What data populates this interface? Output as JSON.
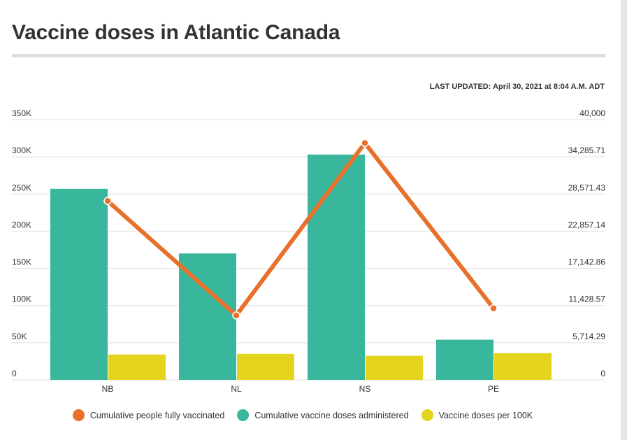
{
  "header": {
    "title": "Vaccine doses in Atlantic Canada",
    "last_updated": "LAST UPDATED: April 30, 2021 at 8:04 A.M. ADT"
  },
  "colors": {
    "fully_vaccinated": "#e8702a",
    "doses_administered": "#38b79c",
    "doses_per_100k": "#e5d41e",
    "gridline": "#dddddd",
    "text": "#333333"
  },
  "chart_data": {
    "type": "bar",
    "categories": [
      "NB",
      "NL",
      "NS",
      "PE"
    ],
    "left_axis": {
      "ylim": [
        0,
        350000
      ],
      "ticks": [
        "350K",
        "300K",
        "250K",
        "200K",
        "150K",
        "100K",
        "50K",
        "0"
      ],
      "tick_values": [
        350000,
        300000,
        250000,
        200000,
        150000,
        100000,
        50000,
        0
      ]
    },
    "right_axis": {
      "ylim": [
        0,
        40000
      ],
      "ticks": [
        "40,000",
        "34,285.71",
        "28,571.43",
        "22,857.14",
        "17,142.86",
        "11,428.57",
        "5,714.29",
        "0"
      ],
      "tick_values": [
        40000,
        34285.71,
        28571.43,
        22857.14,
        17142.86,
        11428.57,
        5714.29,
        0
      ]
    },
    "grid": true,
    "legend_position": "bottom",
    "series": [
      {
        "name": "Cumulative people fully vaccinated",
        "type": "line",
        "axis": "right",
        "values": [
          27500,
          9900,
          36400,
          11000
        ]
      },
      {
        "name": "Cumulative vaccine doses administered",
        "type": "bar",
        "axis": "left",
        "values": [
          257000,
          170000,
          303000,
          54000
        ]
      },
      {
        "name": "Vaccine doses per 100K",
        "type": "bar",
        "axis": "right",
        "values": [
          3900,
          4000,
          3700,
          4100
        ]
      }
    ]
  }
}
